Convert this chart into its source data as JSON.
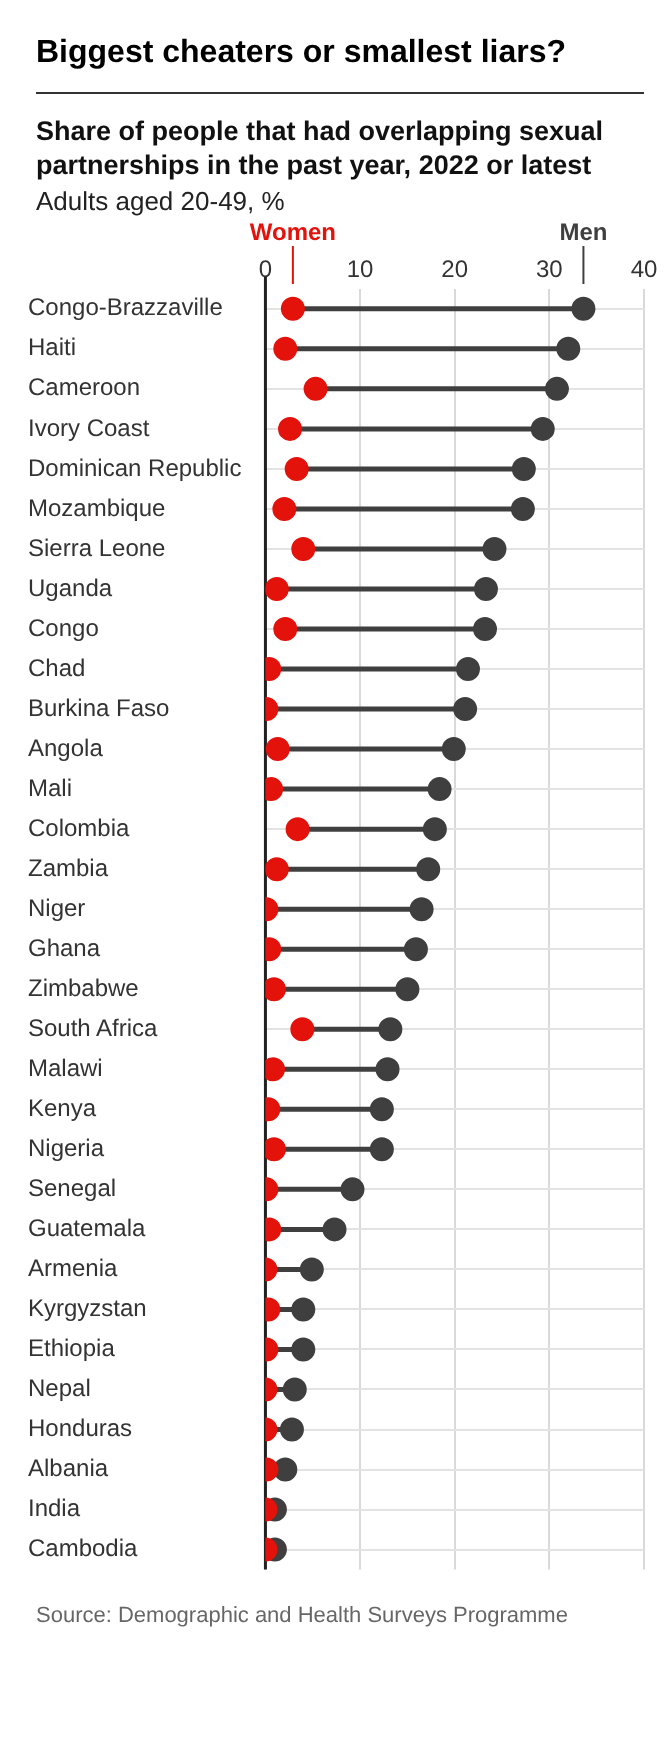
{
  "chart_data": {
    "type": "scatter",
    "orientation": "horizontal",
    "title": "Biggest cheaters or smallest liars?",
    "subtitle": "Share of people that had overlapping sexual partnerships in the past year, 2022 or latest",
    "xlabel": "Adults aged 20-49, %",
    "categories": [
      "Congo-Brazzaville",
      "Haiti",
      "Cameroon",
      "Ivory Coast",
      "Dominican Republic",
      "Mozambique",
      "Sierra Leone",
      "Uganda",
      "Congo",
      "Chad",
      "Burkina Faso",
      "Angola",
      "Mali",
      "Colombia",
      "Zambia",
      "Niger",
      "Ghana",
      "Zimbabwe",
      "South Africa",
      "Malawi",
      "Kenya",
      "Nigeria",
      "Senegal",
      "Guatemala",
      "Armenia",
      "Kyrgyzstan",
      "Ethiopia",
      "Nepal",
      "Honduras",
      "Albania",
      "India",
      "Cambodia"
    ],
    "series": [
      {
        "name": "Women",
        "color": "#e3120b",
        "values": [
          2.9,
          2.1,
          5.3,
          2.6,
          3.3,
          2,
          4,
          1.2,
          2.1,
          0.4,
          0.1,
          1.3,
          0.6,
          3.4,
          1.2,
          0.1,
          0.4,
          0.9,
          3.9,
          0.8,
          0.3,
          0.9,
          0.1,
          0.4,
          0,
          0.3,
          0.1,
          0,
          0,
          0.1,
          0,
          0
        ]
      },
      {
        "name": "Men",
        "color": "#3f3f3f",
        "values": [
          33.6,
          32,
          30.8,
          29.3,
          27.3,
          27.2,
          24.2,
          23.3,
          23.2,
          21.4,
          21.1,
          19.9,
          18.4,
          17.9,
          17.2,
          16.5,
          15.9,
          15,
          13.2,
          12.9,
          12.3,
          12.3,
          9.2,
          7.3,
          4.9,
          4,
          4,
          3.1,
          2.8,
          2.1,
          1,
          1
        ]
      }
    ],
    "xlim": [
      0,
      40
    ],
    "xticks": [
      0,
      10,
      20,
      30,
      40
    ],
    "grid": true,
    "legend": false,
    "marker": "circle",
    "annotations": [
      "Source: Demographic and Health Surveys Programme"
    ]
  }
}
